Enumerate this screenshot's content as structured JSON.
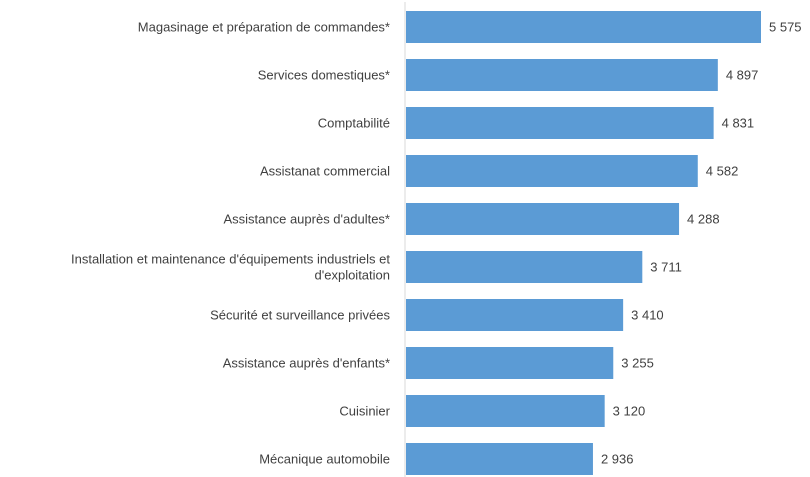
{
  "chart_data": {
    "type": "bar",
    "orientation": "horizontal",
    "categories": [
      [
        "Magasinage et préparation de commandes*"
      ],
      [
        "Services domestiques*"
      ],
      [
        "Comptabilité"
      ],
      [
        "Assistanat commercial"
      ],
      [
        "Assistance auprès d'adultes*"
      ],
      [
        "Installation et maintenance d'équipements industriels et",
        "d'exploitation"
      ],
      [
        "Sécurité et surveillance privées"
      ],
      [
        "Assistance auprès d'enfants*"
      ],
      [
        "Cuisinier"
      ],
      [
        "Mécanique automobile"
      ]
    ],
    "values": [
      5575,
      4897,
      4831,
      4582,
      4288,
      3711,
      3410,
      3255,
      3120,
      2936
    ],
    "value_labels": [
      "5 575",
      "4 897",
      "4 831",
      "4 582",
      "4 288",
      "3 711",
      "3 410",
      "3 255",
      "3 120",
      "2 936"
    ],
    "title": "",
    "xlabel": "",
    "ylabel": "",
    "xlim": [
      0,
      5575
    ],
    "grid": false,
    "legend": "none",
    "bar_color": "#5B9BD5",
    "axis_color": "#D9D9D9"
  }
}
